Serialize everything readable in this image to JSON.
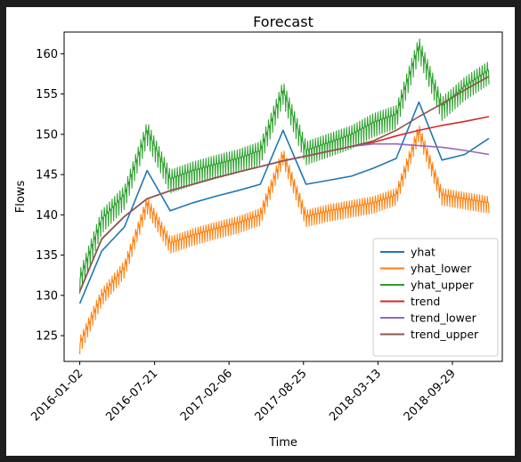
{
  "chart_data": {
    "type": "line",
    "title": "Forecast",
    "xlabel": "Time",
    "ylabel": "Flows",
    "x_ticks": [
      "2016-01-02",
      "2016-07-21",
      "2017-02-06",
      "2017-08-25",
      "2018-03-13",
      "2018-09-29"
    ],
    "x_range": [
      "2015-11-21",
      "2019-02-10"
    ],
    "y_ticks": [
      125,
      130,
      135,
      140,
      145,
      150,
      155,
      160
    ],
    "ylim": [
      121.8,
      162.7
    ],
    "grid": false,
    "legend_position": "lower-right",
    "series": [
      {
        "name": "yhat",
        "color": "#1f77b4",
        "x": [
          "2016-01-02",
          "2016-03-01",
          "2016-05-01",
          "2016-07-01",
          "2016-09-01",
          "2016-11-01",
          "2017-01-01",
          "2017-03-01",
          "2017-05-01",
          "2017-07-01",
          "2017-09-01",
          "2017-11-01",
          "2018-01-01",
          "2018-03-01",
          "2018-05-01",
          "2018-07-01",
          "2018-09-01",
          "2018-11-01",
          "2019-01-05"
        ],
        "values": [
          129.0,
          135.5,
          138.5,
          145.5,
          140.5,
          141.5,
          142.3,
          143.0,
          143.8,
          150.5,
          143.8,
          144.3,
          144.8,
          145.8,
          147.0,
          154.0,
          146.8,
          147.5,
          149.5
        ]
      },
      {
        "name": "yhat_lower",
        "color": "#ff7f0e",
        "x": [
          "2016-01-02",
          "2016-03-01",
          "2016-05-01",
          "2016-07-01",
          "2016-09-01",
          "2016-11-01",
          "2017-01-01",
          "2017-03-01",
          "2017-05-01",
          "2017-07-01",
          "2017-09-01",
          "2017-11-01",
          "2018-01-01",
          "2018-03-01",
          "2018-05-01",
          "2018-07-01",
          "2018-09-01",
          "2018-11-01",
          "2019-01-05"
        ],
        "values": [
          124.0,
          130.0,
          133.5,
          141.5,
          136.5,
          137.5,
          138.3,
          139.0,
          140.0,
          147.5,
          139.8,
          140.5,
          141.0,
          141.5,
          142.5,
          150.5,
          142.5,
          142.0,
          141.5
        ]
      },
      {
        "name": "yhat_upper",
        "color": "#2ca02c",
        "x": [
          "2016-01-02",
          "2016-03-01",
          "2016-05-01",
          "2016-07-01",
          "2016-09-01",
          "2016-11-01",
          "2017-01-01",
          "2017-03-01",
          "2017-05-01",
          "2017-07-01",
          "2017-09-01",
          "2017-11-01",
          "2018-01-01",
          "2018-03-01",
          "2018-05-01",
          "2018-07-01",
          "2018-09-01",
          "2018-11-01",
          "2019-01-05"
        ],
        "values": [
          132.0,
          139.5,
          142.5,
          150.5,
          144.5,
          145.5,
          146.3,
          147.0,
          148.0,
          155.5,
          148.0,
          149.0,
          150.0,
          151.5,
          152.5,
          161.0,
          153.5,
          156.0,
          158.0
        ]
      },
      {
        "name": "trend",
        "color": "#d62728",
        "x": [
          "2016-01-02",
          "2016-03-01",
          "2016-05-01",
          "2016-07-01",
          "2016-09-01",
          "2016-11-01",
          "2017-01-01",
          "2017-03-01",
          "2017-05-01",
          "2017-07-01",
          "2017-09-01",
          "2017-11-01",
          "2018-01-01",
          "2018-03-01",
          "2018-05-01",
          "2018-07-01",
          "2018-09-01",
          "2018-11-01",
          "2019-01-05"
        ],
        "values": [
          130.5,
          137.0,
          139.8,
          142.0,
          143.0,
          143.8,
          144.6,
          145.3,
          146.0,
          146.7,
          147.3,
          147.9,
          148.5,
          149.0,
          149.8,
          150.5,
          151.1,
          151.6,
          152.2
        ]
      },
      {
        "name": "trend_lower",
        "color": "#9467bd",
        "x": [
          "2016-01-02",
          "2016-03-01",
          "2016-05-01",
          "2016-07-01",
          "2016-09-01",
          "2016-11-01",
          "2017-01-01",
          "2017-03-01",
          "2017-05-01",
          "2017-07-01",
          "2017-09-01",
          "2017-11-01",
          "2018-01-01",
          "2018-03-01",
          "2018-05-01",
          "2018-07-01",
          "2018-09-01",
          "2018-11-01",
          "2019-01-05"
        ],
        "values": [
          130.5,
          137.0,
          139.8,
          142.0,
          143.0,
          143.8,
          144.6,
          145.3,
          146.0,
          146.7,
          147.3,
          147.9,
          148.5,
          148.8,
          148.8,
          148.6,
          148.4,
          148.0,
          147.5
        ]
      },
      {
        "name": "trend_upper",
        "color": "#8c564b",
        "x": [
          "2016-01-02",
          "2016-03-01",
          "2016-05-01",
          "2016-07-01",
          "2016-09-01",
          "2016-11-01",
          "2017-01-01",
          "2017-03-01",
          "2017-05-01",
          "2017-07-01",
          "2017-09-01",
          "2017-11-01",
          "2018-01-01",
          "2018-03-01",
          "2018-05-01",
          "2018-07-01",
          "2018-09-01",
          "2018-11-01",
          "2019-01-05"
        ],
        "values": [
          130.5,
          137.0,
          139.8,
          142.0,
          143.0,
          143.8,
          144.6,
          145.3,
          146.0,
          146.7,
          147.3,
          147.9,
          148.5,
          149.2,
          150.5,
          152.2,
          153.8,
          155.5,
          157.2
        ]
      }
    ]
  }
}
